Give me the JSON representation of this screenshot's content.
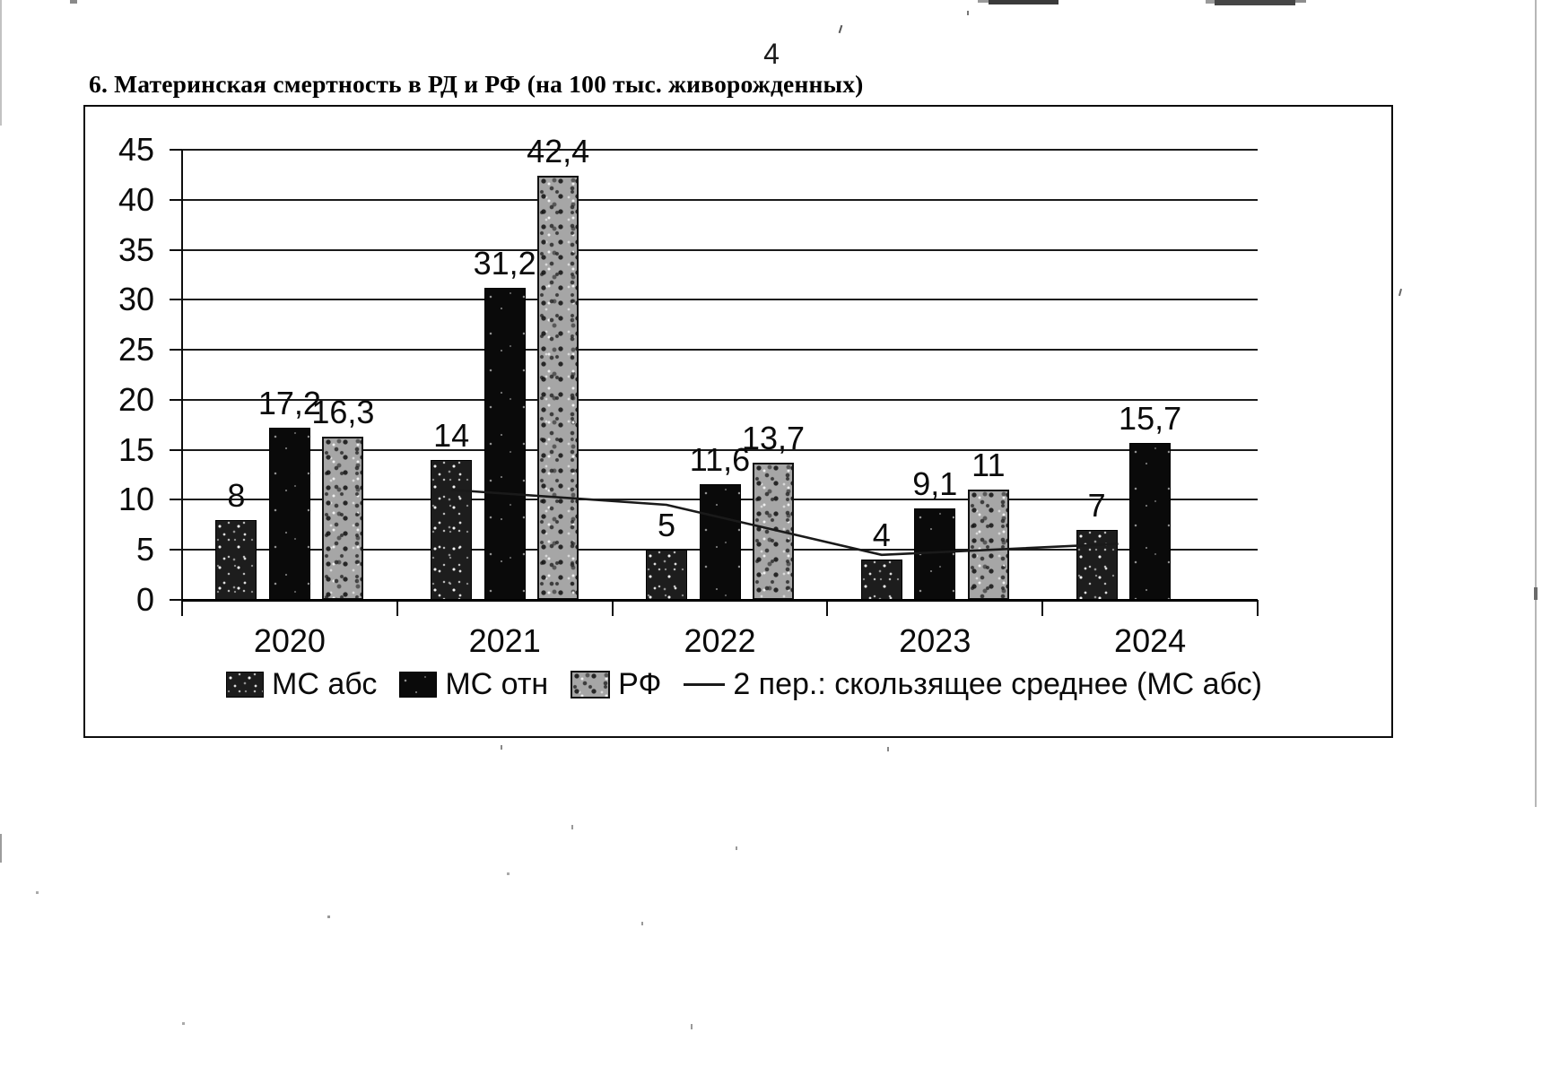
{
  "page": {
    "number": "4",
    "title": "6. Материнская смертность в РД и РФ (на 100 тыс. живорожденных)"
  },
  "chart_data": {
    "type": "bar",
    "title": "6. Материнская смертность в РД и РФ (на 100 тыс. живорожденных)",
    "categories": [
      "2020",
      "2021",
      "2022",
      "2023",
      "2024"
    ],
    "series": [
      {
        "name": "МС абс",
        "texture": "tex-dark",
        "values": [
          8,
          14,
          5,
          4,
          7
        ],
        "labels": [
          "8",
          "14",
          "5",
          "4",
          "7"
        ]
      },
      {
        "name": "МС отн",
        "texture": "tex-black",
        "values": [
          17.2,
          31.2,
          11.6,
          9.1,
          15.7
        ],
        "labels": [
          "17,2",
          "31,2",
          "11,6",
          "9,1",
          "15,7"
        ]
      },
      {
        "name": "РФ",
        "texture": "tex-gray",
        "values": [
          16.3,
          42.4,
          13.7,
          11,
          null
        ],
        "labels": [
          "16,3",
          "42,4",
          "13,7",
          "11",
          ""
        ]
      }
    ],
    "moving_average": {
      "name": "2 пер.: скользящее среднее (МС абс)",
      "anchor_series": "МС абс",
      "categories": [
        "2021",
        "2022",
        "2023",
        "2024"
      ],
      "values": [
        11,
        9.5,
        4.5,
        5.5
      ]
    },
    "ylim": [
      0,
      45
    ],
    "ytick_step": 5,
    "yticks": [
      "0",
      "5",
      "10",
      "15",
      "20",
      "25",
      "30",
      "35",
      "40",
      "45"
    ],
    "grid": true,
    "legend_position": "bottom",
    "colors": {
      "ink": "#0d0d0d",
      "paper": "#ffffff",
      "gray_bar": "#a6a6a6"
    }
  }
}
